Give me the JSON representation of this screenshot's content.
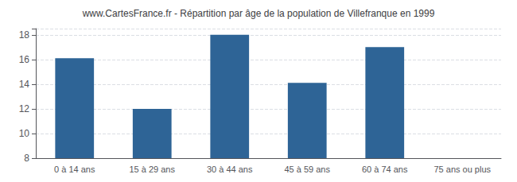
{
  "chart_data": {
    "type": "bar",
    "title": "www.CartesFrance.fr - Répartition par âge de la population de Villefranque en 1999",
    "categories": [
      "0 à 14 ans",
      "15 à 29 ans",
      "30 à 44 ans",
      "45 à 59 ans",
      "60 à 74 ans",
      "75 ans ou plus"
    ],
    "values": [
      16.1,
      12.0,
      18.0,
      14.1,
      17.0,
      8.0
    ],
    "color": "#2e6496",
    "ylim": [
      8,
      18.5
    ],
    "yticks": [
      8,
      10,
      12,
      14,
      16,
      18
    ],
    "grid": true
  }
}
